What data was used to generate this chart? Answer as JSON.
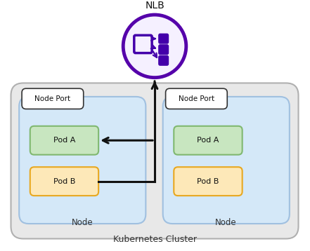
{
  "title": "NLB",
  "cluster_label": "Kubernetes Cluster",
  "node_label": "Node",
  "node_port_label": "Node Port",
  "pod_a_label": "Pod A",
  "pod_b_label": "Pod B",
  "cluster_fill": "#e8e8e8",
  "cluster_edge": "#b0b0b0",
  "node_fill": "#d4e8f8",
  "node_edge": "#a0c0e0",
  "node_port_fill": "#ffffff",
  "node_port_edge": "#333333",
  "pod_a_fill": "#c8e6c0",
  "pod_b_fill": "#fde8b8",
  "pod_a_edge": "#80b870",
  "pod_b_edge": "#e8a820",
  "nlb_circle_facecolor": "#f5f0ff",
  "nlb_circle_edgecolor": "#5500aa",
  "nlb_icon_color": "#4400aa",
  "arrow_color": "#111111",
  "fig_bg": "#ffffff",
  "text_color": "#333333"
}
